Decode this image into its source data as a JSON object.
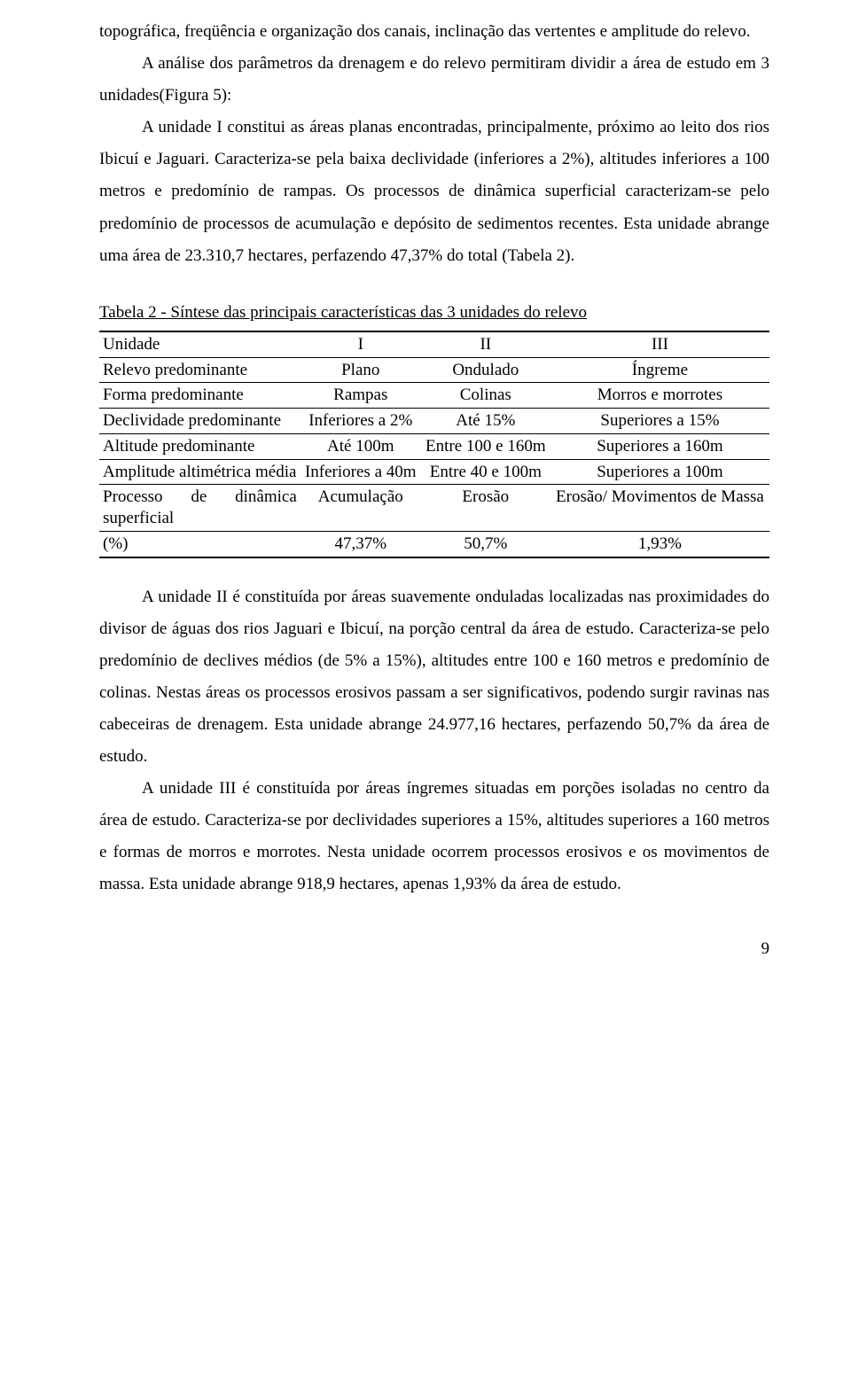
{
  "para1": "topográfica, freqüência e organização dos canais, inclinação das vertentes e amplitude do relevo.",
  "para2": "A análise dos parâmetros da drenagem e do relevo permitiram dividir a área de estudo em 3 unidades(Figura 5):",
  "para3": "A unidade I constitui as áreas planas encontradas, principalmente, próximo ao leito dos rios Ibicuí e Jaguari. Caracteriza-se pela baixa declividade (inferiores a 2%), altitudes inferiores a 100 metros e predomínio de rampas. Os processos de dinâmica superficial caracterizam-se pelo predomínio de processos de acumulação e depósito de sedimentos recentes. Esta unidade abrange uma área de 23.310,7 hectares, perfazendo 47,37% do total (Tabela 2).",
  "tableCaption": "Tabela 2 - Síntese das principais características das 3 unidades do relevo",
  "tbl": {
    "h": {
      "c0": "Unidade",
      "c1": "I",
      "c2": "II",
      "c3": "III"
    },
    "r1": {
      "c0": "Relevo predominante",
      "c1": "Plano",
      "c2": "Ondulado",
      "c3": "Íngreme"
    },
    "r2": {
      "c0": "Forma predominante",
      "c1": "Rampas",
      "c2": "Colinas",
      "c3": "Morros e morrotes"
    },
    "r3": {
      "c0": "Declividade predominante",
      "c1": "Inferiores a 2%",
      "c2": "Até 15%",
      "c3": "Superiores a 15%"
    },
    "r4": {
      "c0": "Altitude predominante",
      "c1": "Até 100m",
      "c2": "Entre 100 e 160m",
      "c3": "Superiores a 160m"
    },
    "r5": {
      "c0": "Amplitude altimétrica média",
      "c1": "Inferiores a 40m",
      "c2": "Entre 40 e 100m",
      "c3": "Superiores a 100m"
    },
    "r6": {
      "c0": "Processo de dinâmica superficial",
      "c1": "Acumulação",
      "c2": "Erosão",
      "c3": "Erosão/ Movimentos de Massa"
    },
    "r7": {
      "c0": "(%)",
      "c1": "47,37%",
      "c2": "50,7%",
      "c3": "1,93%"
    }
  },
  "para4": "A unidade II é constituída por áreas suavemente onduladas localizadas nas proximidades do divisor de águas dos rios Jaguari e Ibicuí, na porção central da área de estudo. Caracteriza-se pelo predomínio de declives médios (de 5% a 15%), altitudes entre 100 e 160 metros e predomínio de colinas. Nestas áreas os processos erosivos passam a ser significativos, podendo surgir ravinas nas cabeceiras de drenagem. Esta unidade abrange 24.977,16 hectares, perfazendo 50,7% da área de estudo.",
  "para5": "A unidade III é constituída por áreas íngremes situadas em porções isoladas no centro da área de estudo. Caracteriza-se por declividades superiores a 15%, altitudes superiores a 160 metros e formas de morros e morrotes. Nesta unidade ocorrem processos erosivos e os movimentos de massa. Esta unidade abrange 918,9 hectares, apenas 1,93% da área de estudo.",
  "pageNumber": "9"
}
